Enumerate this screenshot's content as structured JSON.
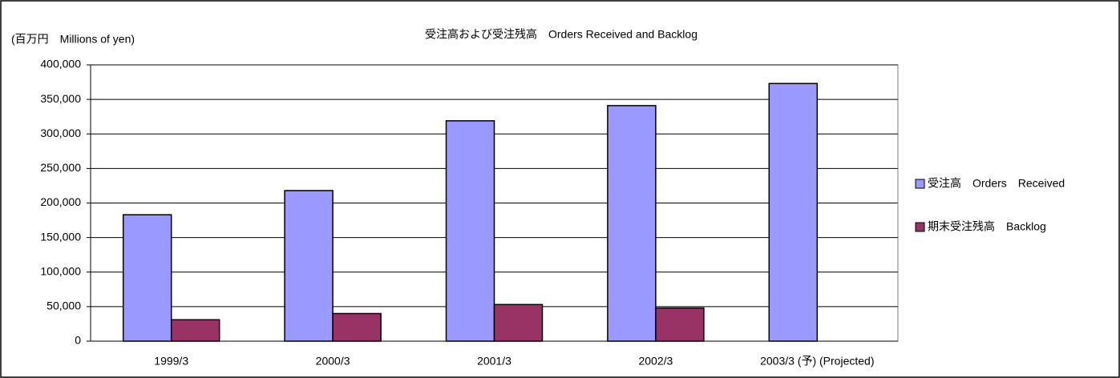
{
  "chart_data": {
    "type": "bar",
    "title": "受注高および受注残高　Orders Received and Backlog",
    "y_label": "(百万円　Millions of yen)",
    "categories": [
      "1999/3",
      "2000/3",
      "2001/3",
      "2002/3",
      "2003/3 (予) (Projected)"
    ],
    "series": [
      {
        "name": "受注高　Orders　Received",
        "color": "#9999ff",
        "values": [
          183000,
          218000,
          319000,
          341000,
          373000
        ]
      },
      {
        "name": "期末受注残高　Backlog",
        "color": "#993366",
        "values": [
          31000,
          40000,
          53000,
          48000,
          null
        ]
      }
    ],
    "ylim": [
      0,
      400000
    ],
    "yticks": [
      0,
      {
        "value": 50000,
        "label": "50,000"
      },
      {
        "value": 100000,
        "label": "100,000"
      },
      {
        "value": 150000,
        "label": "150,000"
      },
      {
        "value": 200000,
        "label": "200,000"
      },
      {
        "value": 250000,
        "label": "250,000"
      },
      {
        "value": 300000,
        "label": "300,000"
      },
      {
        "value": 350000,
        "label": "350,000"
      },
      {
        "value": 400000,
        "label": "400,000"
      }
    ],
    "grid": true,
    "legend": "right"
  }
}
